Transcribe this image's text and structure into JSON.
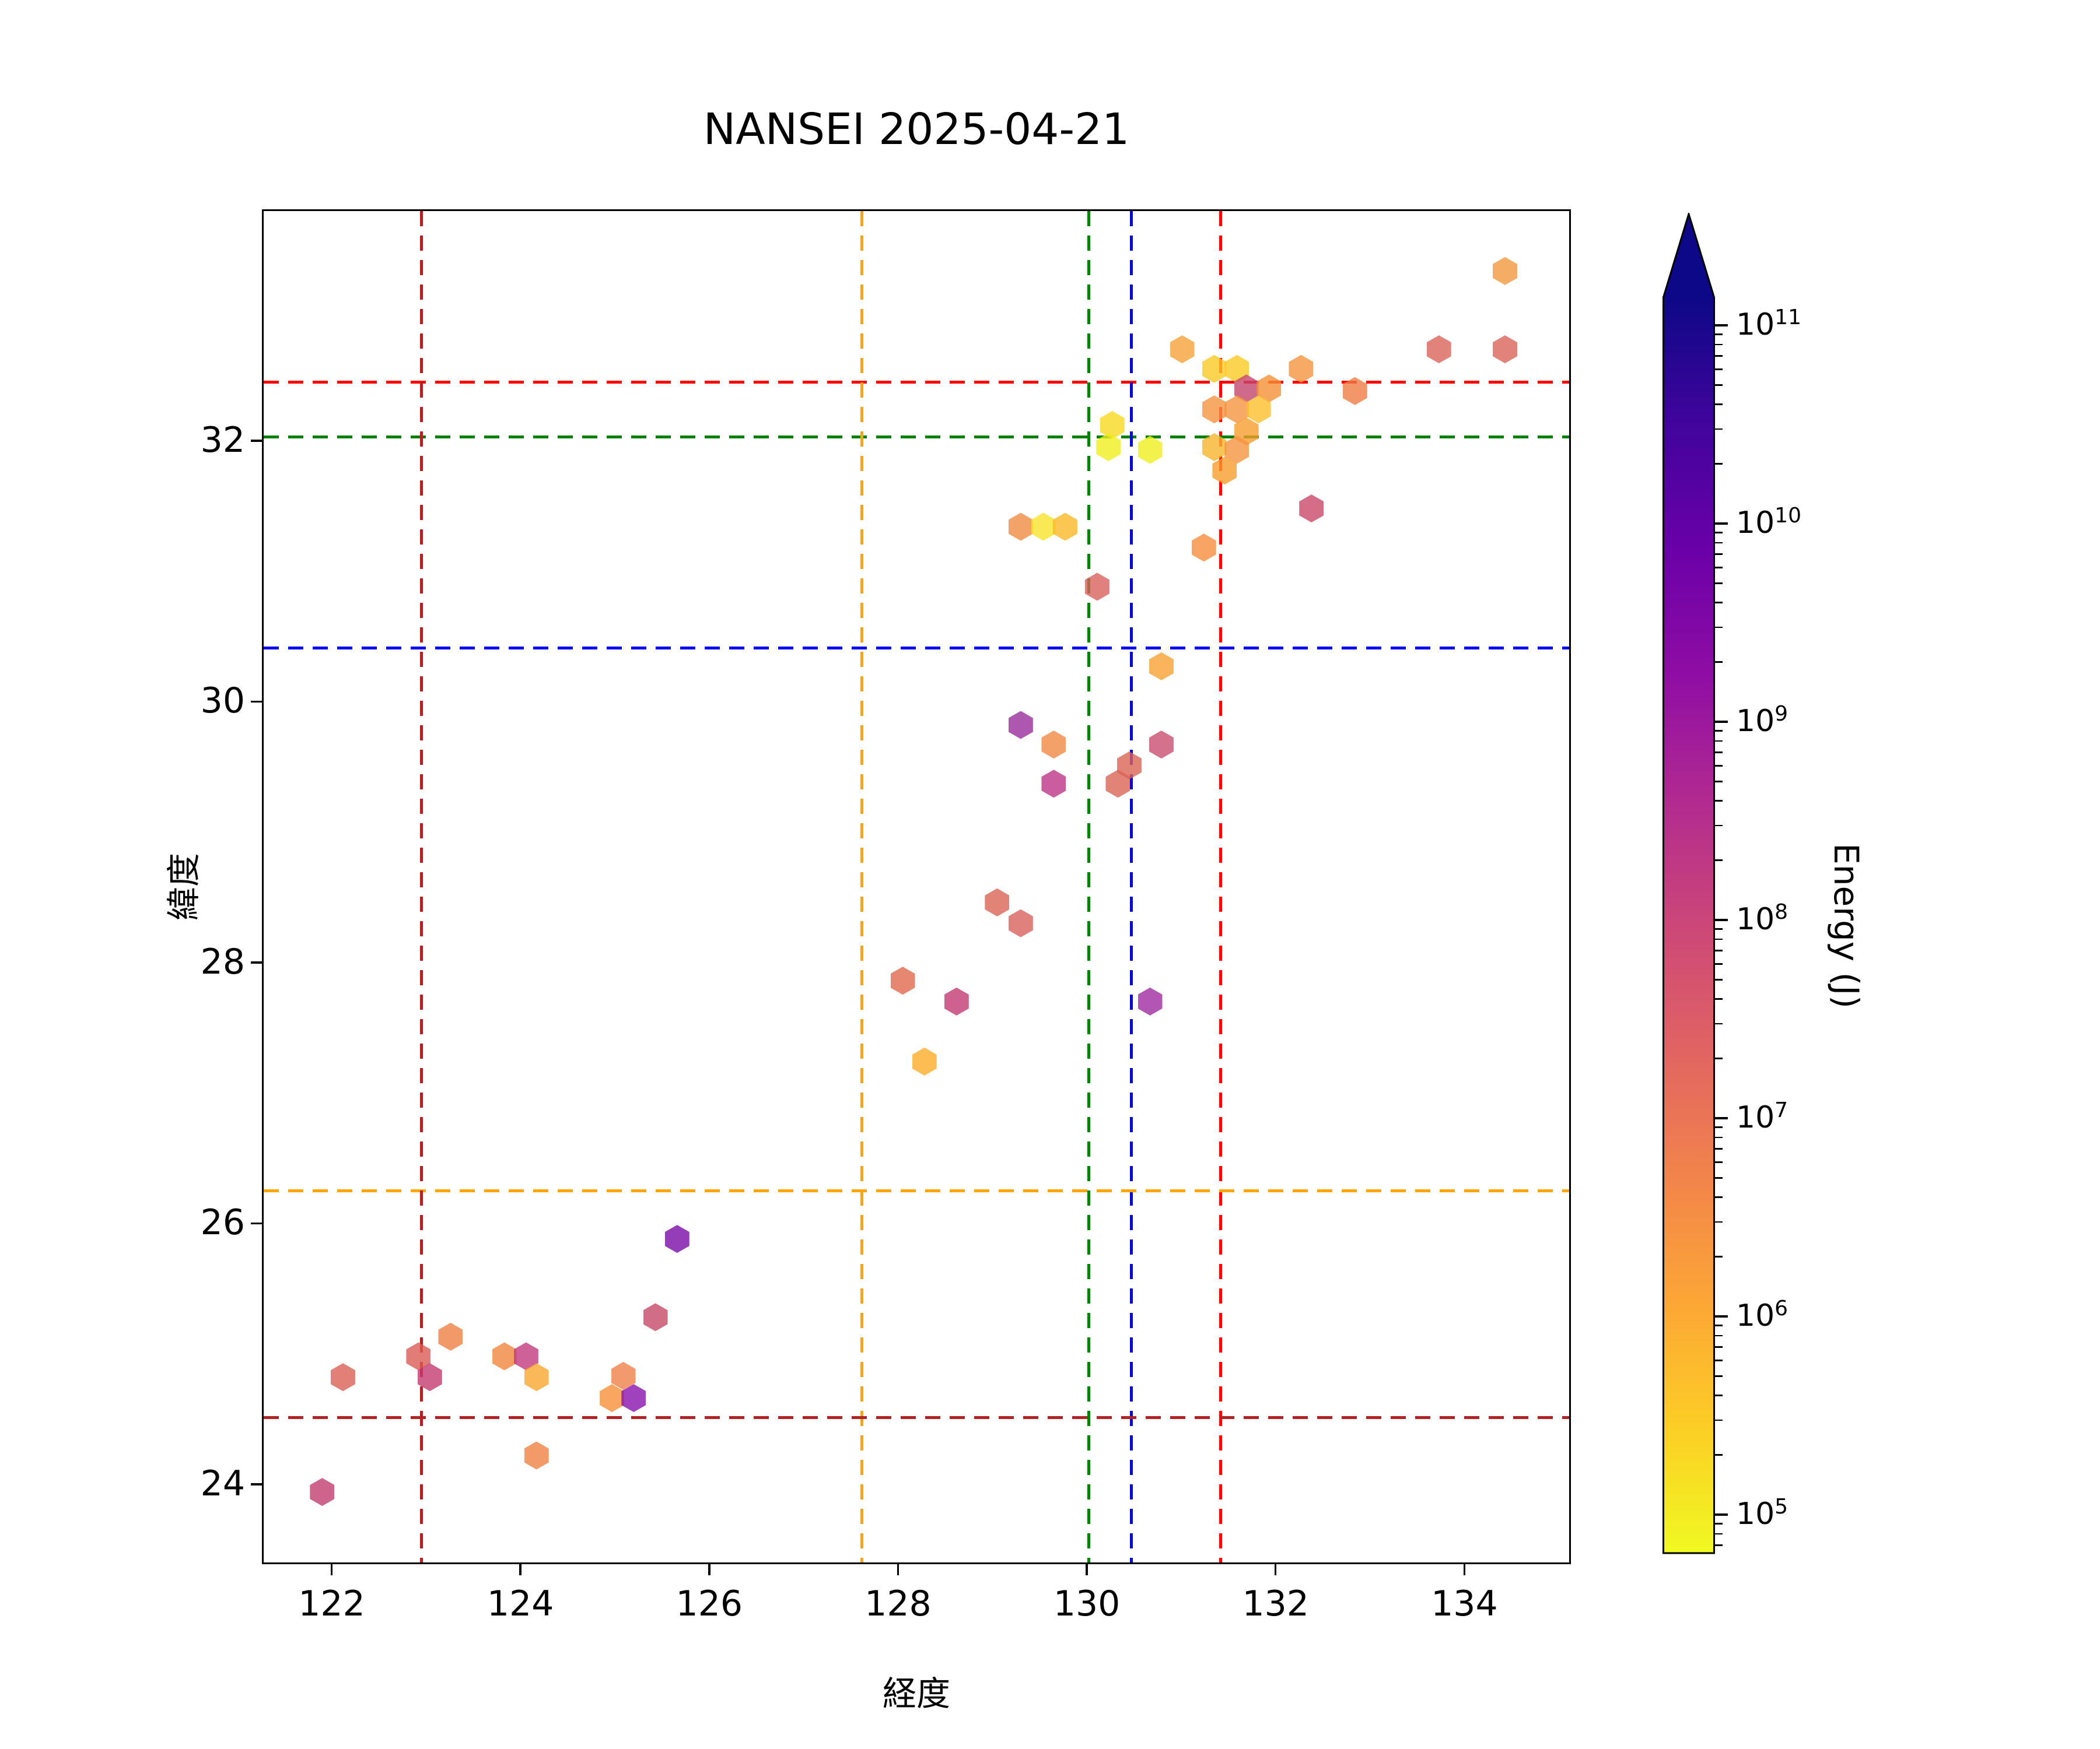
{
  "window_title": "NANSEI 2025-04-21",
  "chart_data": {
    "type": "scatter",
    "marker": "hexagon",
    "title": "NANSEI 2025-04-21",
    "xlabel": "経度",
    "ylabel": "緯度",
    "xlim": [
      121.28,
      135.11
    ],
    "ylim": [
      23.4,
      33.76
    ],
    "xticks": [
      122,
      124,
      126,
      128,
      130,
      132,
      134
    ],
    "yticks": [
      24,
      26,
      28,
      30,
      32
    ],
    "grid": false,
    "legend": "none",
    "colorbar": {
      "label": "Energy (J)",
      "scale": "log",
      "colormap": "plasma_r",
      "extend": "max",
      "tick_exponents": [
        5,
        6,
        7,
        8,
        9,
        10,
        11
      ],
      "range_log10": [
        4.8,
        11.14
      ],
      "over_color": "#0d0887",
      "gradient_top_to_bottom": [
        "#0d0887",
        "#41049d",
        "#6a00a8",
        "#8f0da4",
        "#b12a90",
        "#cc4778",
        "#e16462",
        "#f2844b",
        "#fca636",
        "#fcce25",
        "#f0f921"
      ]
    },
    "crosshairs": [
      {
        "name": "red",
        "color": "#ff0000",
        "lon": 131.42,
        "lat": 32.45
      },
      {
        "name": "green",
        "color": "#008000",
        "lon": 130.02,
        "lat": 32.03
      },
      {
        "name": "blue",
        "color": "#0000ff",
        "lon": 130.47,
        "lat": 30.41
      },
      {
        "name": "orange",
        "color": "#ffa500",
        "lon": 127.62,
        "lat": 26.25
      },
      {
        "name": "darkred",
        "color": "#b22222",
        "lon": 122.95,
        "lat": 24.51
      }
    ],
    "points": [
      {
        "lon": 134.43,
        "lat": 33.3,
        "color": "#f2973f",
        "energy_j": 8000000.0
      },
      {
        "lon": 133.73,
        "lat": 32.7,
        "color": "#d9635a",
        "energy_j": 60000000.0
      },
      {
        "lon": 134.43,
        "lat": 32.7,
        "color": "#d9635a",
        "energy_j": 60000000.0
      },
      {
        "lon": 131.01,
        "lat": 32.7,
        "color": "#f5a33b",
        "energy_j": 3000000.0
      },
      {
        "lon": 132.27,
        "lat": 32.55,
        "color": "#f59440",
        "energy_j": 8000000.0
      },
      {
        "lon": 131.35,
        "lat": 32.55,
        "color": "#fbca24",
        "energy_j": 300000.0
      },
      {
        "lon": 131.59,
        "lat": 32.55,
        "color": "#fbca24",
        "energy_j": 300000.0
      },
      {
        "lon": 131.69,
        "lat": 32.4,
        "color": "#c4456e",
        "energy_j": 300000000.0
      },
      {
        "lon": 131.93,
        "lat": 32.4,
        "color": "#f59035",
        "energy_j": 8000000.0
      },
      {
        "lon": 132.84,
        "lat": 32.38,
        "color": "#ee7d45",
        "energy_j": 15000000.0
      },
      {
        "lon": 131.35,
        "lat": 32.24,
        "color": "#f59440",
        "energy_j": 8000000.0
      },
      {
        "lon": 131.59,
        "lat": 32.24,
        "color": "#f59440",
        "energy_j": 8000000.0
      },
      {
        "lon": 131.82,
        "lat": 32.24,
        "color": "#fbbf2c",
        "energy_j": 1000000.0
      },
      {
        "lon": 131.69,
        "lat": 32.07,
        "color": "#f79d2d",
        "energy_j": 1000000.0
      },
      {
        "lon": 130.27,
        "lat": 32.12,
        "color": "#f6d920",
        "energy_j": 300000.0
      },
      {
        "lon": 130.23,
        "lat": 31.95,
        "color": "#f0ef1f",
        "energy_j": 120000.0
      },
      {
        "lon": 130.67,
        "lat": 31.93,
        "color": "#f0ef1f",
        "energy_j": 120000.0
      },
      {
        "lon": 131.35,
        "lat": 31.95,
        "color": "#f8b52d",
        "energy_j": 1000000.0
      },
      {
        "lon": 131.59,
        "lat": 31.93,
        "color": "#f59440",
        "energy_j": 8000000.0
      },
      {
        "lon": 131.46,
        "lat": 31.77,
        "color": "#f79d2d",
        "energy_j": 1500000.0
      },
      {
        "lon": 132.38,
        "lat": 31.48,
        "color": "#c94a68",
        "energy_j": 200000000.0
      },
      {
        "lon": 129.3,
        "lat": 31.34,
        "color": "#f08c42",
        "energy_j": 8000000.0
      },
      {
        "lon": 129.54,
        "lat": 31.34,
        "color": "#f7e32b",
        "energy_j": 120000.0
      },
      {
        "lon": 129.77,
        "lat": 31.34,
        "color": "#fbb828",
        "energy_j": 1000000.0
      },
      {
        "lon": 131.24,
        "lat": 31.18,
        "color": "#f58d3d",
        "energy_j": 8000000.0
      },
      {
        "lon": 130.11,
        "lat": 30.88,
        "color": "#d9615c",
        "energy_j": 60000000.0
      },
      {
        "lon": 130.79,
        "lat": 30.27,
        "color": "#f9a233",
        "energy_j": 1000000.0
      },
      {
        "lon": 129.3,
        "lat": 29.82,
        "color": "#9a2d9e",
        "energy_j": 4000000000.0
      },
      {
        "lon": 129.65,
        "lat": 29.67,
        "color": "#f08a42",
        "energy_j": 8000000.0
      },
      {
        "lon": 130.79,
        "lat": 29.67,
        "color": "#c94e71",
        "energy_j": 200000000.0
      },
      {
        "lon": 129.65,
        "lat": 29.37,
        "color": "#bc3587",
        "energy_j": 700000000.0
      },
      {
        "lon": 130.45,
        "lat": 29.51,
        "color": "#da6455",
        "energy_j": 60000000.0
      },
      {
        "lon": 130.33,
        "lat": 29.37,
        "color": "#da6455",
        "energy_j": 60000000.0
      },
      {
        "lon": 129.05,
        "lat": 28.46,
        "color": "#da6455",
        "energy_j": 60000000.0
      },
      {
        "lon": 129.3,
        "lat": 28.3,
        "color": "#d9615c",
        "energy_j": 60000000.0
      },
      {
        "lon": 128.05,
        "lat": 27.86,
        "color": "#e0694f",
        "energy_j": 30000000.0
      },
      {
        "lon": 128.62,
        "lat": 27.7,
        "color": "#c23a72",
        "energy_j": 500000000.0
      },
      {
        "lon": 130.67,
        "lat": 27.7,
        "color": "#a02ba0",
        "energy_j": 4000000000.0
      },
      {
        "lon": 128.28,
        "lat": 27.24,
        "color": "#fbac28",
        "energy_j": 1000000.0
      },
      {
        "lon": 121.9,
        "lat": 23.94,
        "color": "#c23c6f",
        "energy_j": 500000000.0
      },
      {
        "lon": 122.12,
        "lat": 24.82,
        "color": "#da6055",
        "energy_j": 60000000.0
      },
      {
        "lon": 122.92,
        "lat": 24.98,
        "color": "#d95b55",
        "energy_j": 60000000.0
      },
      {
        "lon": 123.04,
        "lat": 24.82,
        "color": "#c43c71",
        "energy_j": 500000000.0
      },
      {
        "lon": 123.26,
        "lat": 25.13,
        "color": "#ef8044",
        "energy_j": 15000000.0
      },
      {
        "lon": 123.83,
        "lat": 24.98,
        "color": "#f0863f",
        "energy_j": 8000000.0
      },
      {
        "lon": 124.06,
        "lat": 24.98,
        "color": "#c13a7e",
        "energy_j": 700000000.0
      },
      {
        "lon": 124.17,
        "lat": 24.82,
        "color": "#f9a72f",
        "energy_j": 1000000.0
      },
      {
        "lon": 124.17,
        "lat": 24.22,
        "color": "#f08144",
        "energy_j": 15000000.0
      },
      {
        "lon": 125.66,
        "lat": 25.88,
        "color": "#7a0da6",
        "energy_j": 15000000000.0
      },
      {
        "lon": 125.43,
        "lat": 25.28,
        "color": "#c64a68",
        "energy_j": 200000000.0
      },
      {
        "lon": 125.09,
        "lat": 24.83,
        "color": "#ef8049",
        "energy_j": 15000000.0
      },
      {
        "lon": 124.97,
        "lat": 24.66,
        "color": "#f79138",
        "energy_j": 3000000.0
      },
      {
        "lon": 125.2,
        "lat": 24.66,
        "color": "#8812ad",
        "energy_j": 6000000000.0
      }
    ]
  }
}
